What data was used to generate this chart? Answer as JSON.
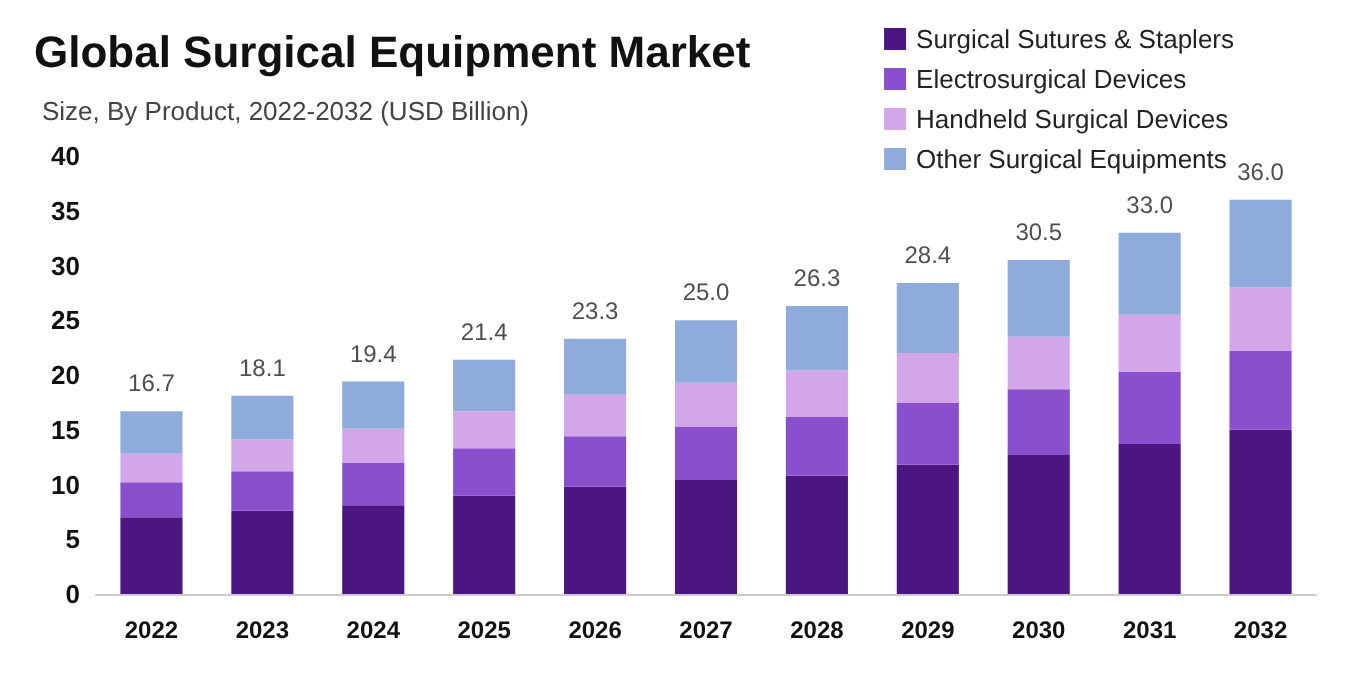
{
  "chart_data": {
    "type": "bar",
    "title": "Global Surgical Equipment Market",
    "subtitle": "Size, By Product, 2022-2032 (USD Billion)",
    "categories": [
      "2022",
      "2023",
      "2024",
      "2025",
      "2026",
      "2027",
      "2028",
      "2029",
      "2030",
      "2031",
      "2032"
    ],
    "stacked": true,
    "ylim": [
      0,
      40
    ],
    "yticks": [
      0,
      5,
      10,
      15,
      20,
      25,
      30,
      35,
      40
    ],
    "grid": false,
    "legend": "top right",
    "series": [
      {
        "name": "Surgical Sutures & Staplers",
        "color": "#4b1680",
        "values": [
          7.0,
          7.6,
          8.1,
          9.0,
          9.8,
          10.4,
          10.8,
          11.8,
          12.7,
          13.7,
          15.0
        ]
      },
      {
        "name": "Electrosurgical Devices",
        "color": "#8a4fcc",
        "values": [
          3.2,
          3.6,
          3.9,
          4.3,
          4.6,
          4.9,
          5.4,
          5.7,
          6.0,
          6.6,
          7.2
        ]
      },
      {
        "name": "Handheld Surgical Devices",
        "color": "#d3a6ea",
        "values": [
          2.6,
          2.9,
          3.1,
          3.4,
          3.8,
          4.0,
          4.2,
          4.5,
          4.8,
          5.2,
          5.8
        ]
      },
      {
        "name": "Other Surgical Equipments",
        "color": "#8eabdc",
        "values": [
          3.9,
          4.0,
          4.3,
          4.7,
          5.1,
          5.7,
          5.9,
          6.4,
          7.0,
          7.5,
          8.0
        ]
      }
    ],
    "totals": [
      "16.7",
      "18.1",
      "19.4",
      "21.4",
      "23.3",
      "25.0",
      "26.3",
      "28.4",
      "30.5",
      "33.0",
      "36.0"
    ]
  }
}
